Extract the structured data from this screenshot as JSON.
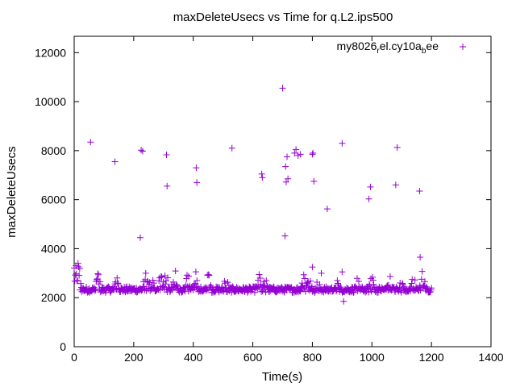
{
  "chart_data": {
    "type": "scatter",
    "title": "maxDeleteUsecs vs Time for q.L2.ips500",
    "xlabel": "Time(s)",
    "ylabel": "maxDeleteUsecs",
    "xlim": [
      0,
      1400
    ],
    "ylim": [
      0,
      12667
    ],
    "xticks": [
      0,
      200,
      400,
      600,
      800,
      1000,
      1200,
      1400
    ],
    "yticks": [
      0,
      2000,
      4000,
      6000,
      8000,
      10000,
      12000
    ],
    "xtick_labels": [
      "0",
      "200",
      "400",
      "600",
      "800",
      "1000",
      "1200",
      "1400"
    ],
    "ytick_labels": [
      "0",
      "2000",
      "4000",
      "6000",
      "8000",
      "10000",
      "12000"
    ],
    "legend_position": "top-right",
    "marker": "plus",
    "series": [
      {
        "name": "my8026_rel.cy10a_bee",
        "legend_parts": [
          "my8026",
          "rel.cy10a",
          "bee"
        ],
        "color": "#9400d3",
        "outliers": [
          [
            55,
            8350
          ],
          [
            137,
            7550
          ],
          [
            222,
            4450
          ],
          [
            225,
            8020
          ],
          [
            230,
            7980
          ],
          [
            310,
            7830
          ],
          [
            312,
            6550
          ],
          [
            410,
            7300
          ],
          [
            412,
            6700
          ],
          [
            530,
            8100
          ],
          [
            630,
            7050
          ],
          [
            632,
            6900
          ],
          [
            700,
            10550
          ],
          [
            708,
            4520
          ],
          [
            710,
            7350
          ],
          [
            712,
            6720
          ],
          [
            715,
            7750
          ],
          [
            718,
            6850
          ],
          [
            740,
            7900
          ],
          [
            745,
            8050
          ],
          [
            752,
            7800
          ],
          [
            760,
            7850
          ],
          [
            800,
            7850
          ],
          [
            802,
            7900
          ],
          [
            805,
            6750
          ],
          [
            800,
            3250
          ],
          [
            850,
            5620
          ],
          [
            900,
            8300
          ],
          [
            990,
            6030
          ],
          [
            995,
            6520
          ],
          [
            1080,
            6600
          ],
          [
            1085,
            8130
          ],
          [
            1160,
            6350
          ],
          [
            1162,
            3650
          ],
          [
            905,
            1850
          ],
          [
            900,
            3050
          ],
          [
            830,
            3000
          ]
        ],
        "dense_band": {
          "x_start": 0,
          "x_end": 1200,
          "count": 650,
          "baseline": 2330,
          "spread": 120,
          "spike_sites": [
            5,
            10,
            15,
            80,
            140,
            240,
            260,
            290,
            305,
            320,
            340,
            380,
            410,
            450,
            510,
            620,
            640,
            770,
            790,
            820,
            880,
            950,
            1000,
            1060,
            1100,
            1140,
            1170
          ],
          "spike_max": 800
        }
      }
    ]
  }
}
